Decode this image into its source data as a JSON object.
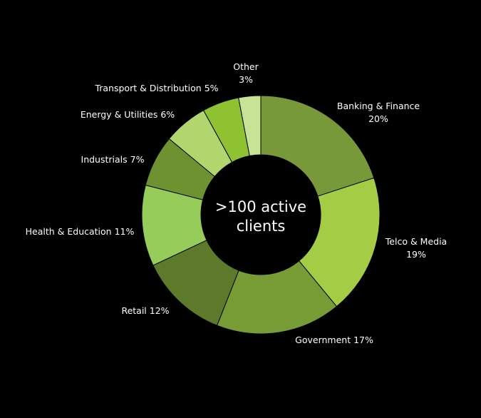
{
  "chart_data": {
    "type": "pie",
    "variant": "donut",
    "title": "",
    "center_text": [
      ">100 active",
      "clients"
    ],
    "legend": "none",
    "background": "#000000",
    "label_color": "#ffffff",
    "slices": [
      {
        "name": "Banking & Finance",
        "value": 20,
        "label_lines": [
          "Banking & Finance",
          "20%"
        ],
        "color": "#77993a"
      },
      {
        "name": "Telco & Media",
        "value": 19,
        "label_lines": [
          "Telco & Media",
          "19%"
        ],
        "color": "#a4cc44"
      },
      {
        "name": "Government",
        "value": 17,
        "label_lines": [
          "Government 17%"
        ],
        "color": "#779c35"
      },
      {
        "name": "Retail",
        "value": 12,
        "label_lines": [
          "Retail 12%"
        ],
        "color": "#5c7a2a"
      },
      {
        "name": "Health & Education",
        "value": 11,
        "label_lines": [
          "Health & Education 11%"
        ],
        "color": "#95cc5a"
      },
      {
        "name": "Industrials",
        "value": 7,
        "label_lines": [
          "Industrials 7%"
        ],
        "color": "#6e9232"
      },
      {
        "name": "Energy & Utilities",
        "value": 6,
        "label_lines": [
          "Energy & Utilities 6%"
        ],
        "color": "#b2d66d"
      },
      {
        "name": "Transport & Distribution",
        "value": 5,
        "label_lines": [
          "Transport & Distribution 5%"
        ],
        "color": "#8ec231"
      },
      {
        "name": "Other",
        "value": 3,
        "label_lines": [
          "Other",
          "3%"
        ],
        "color": "#c6e396"
      }
    ]
  }
}
